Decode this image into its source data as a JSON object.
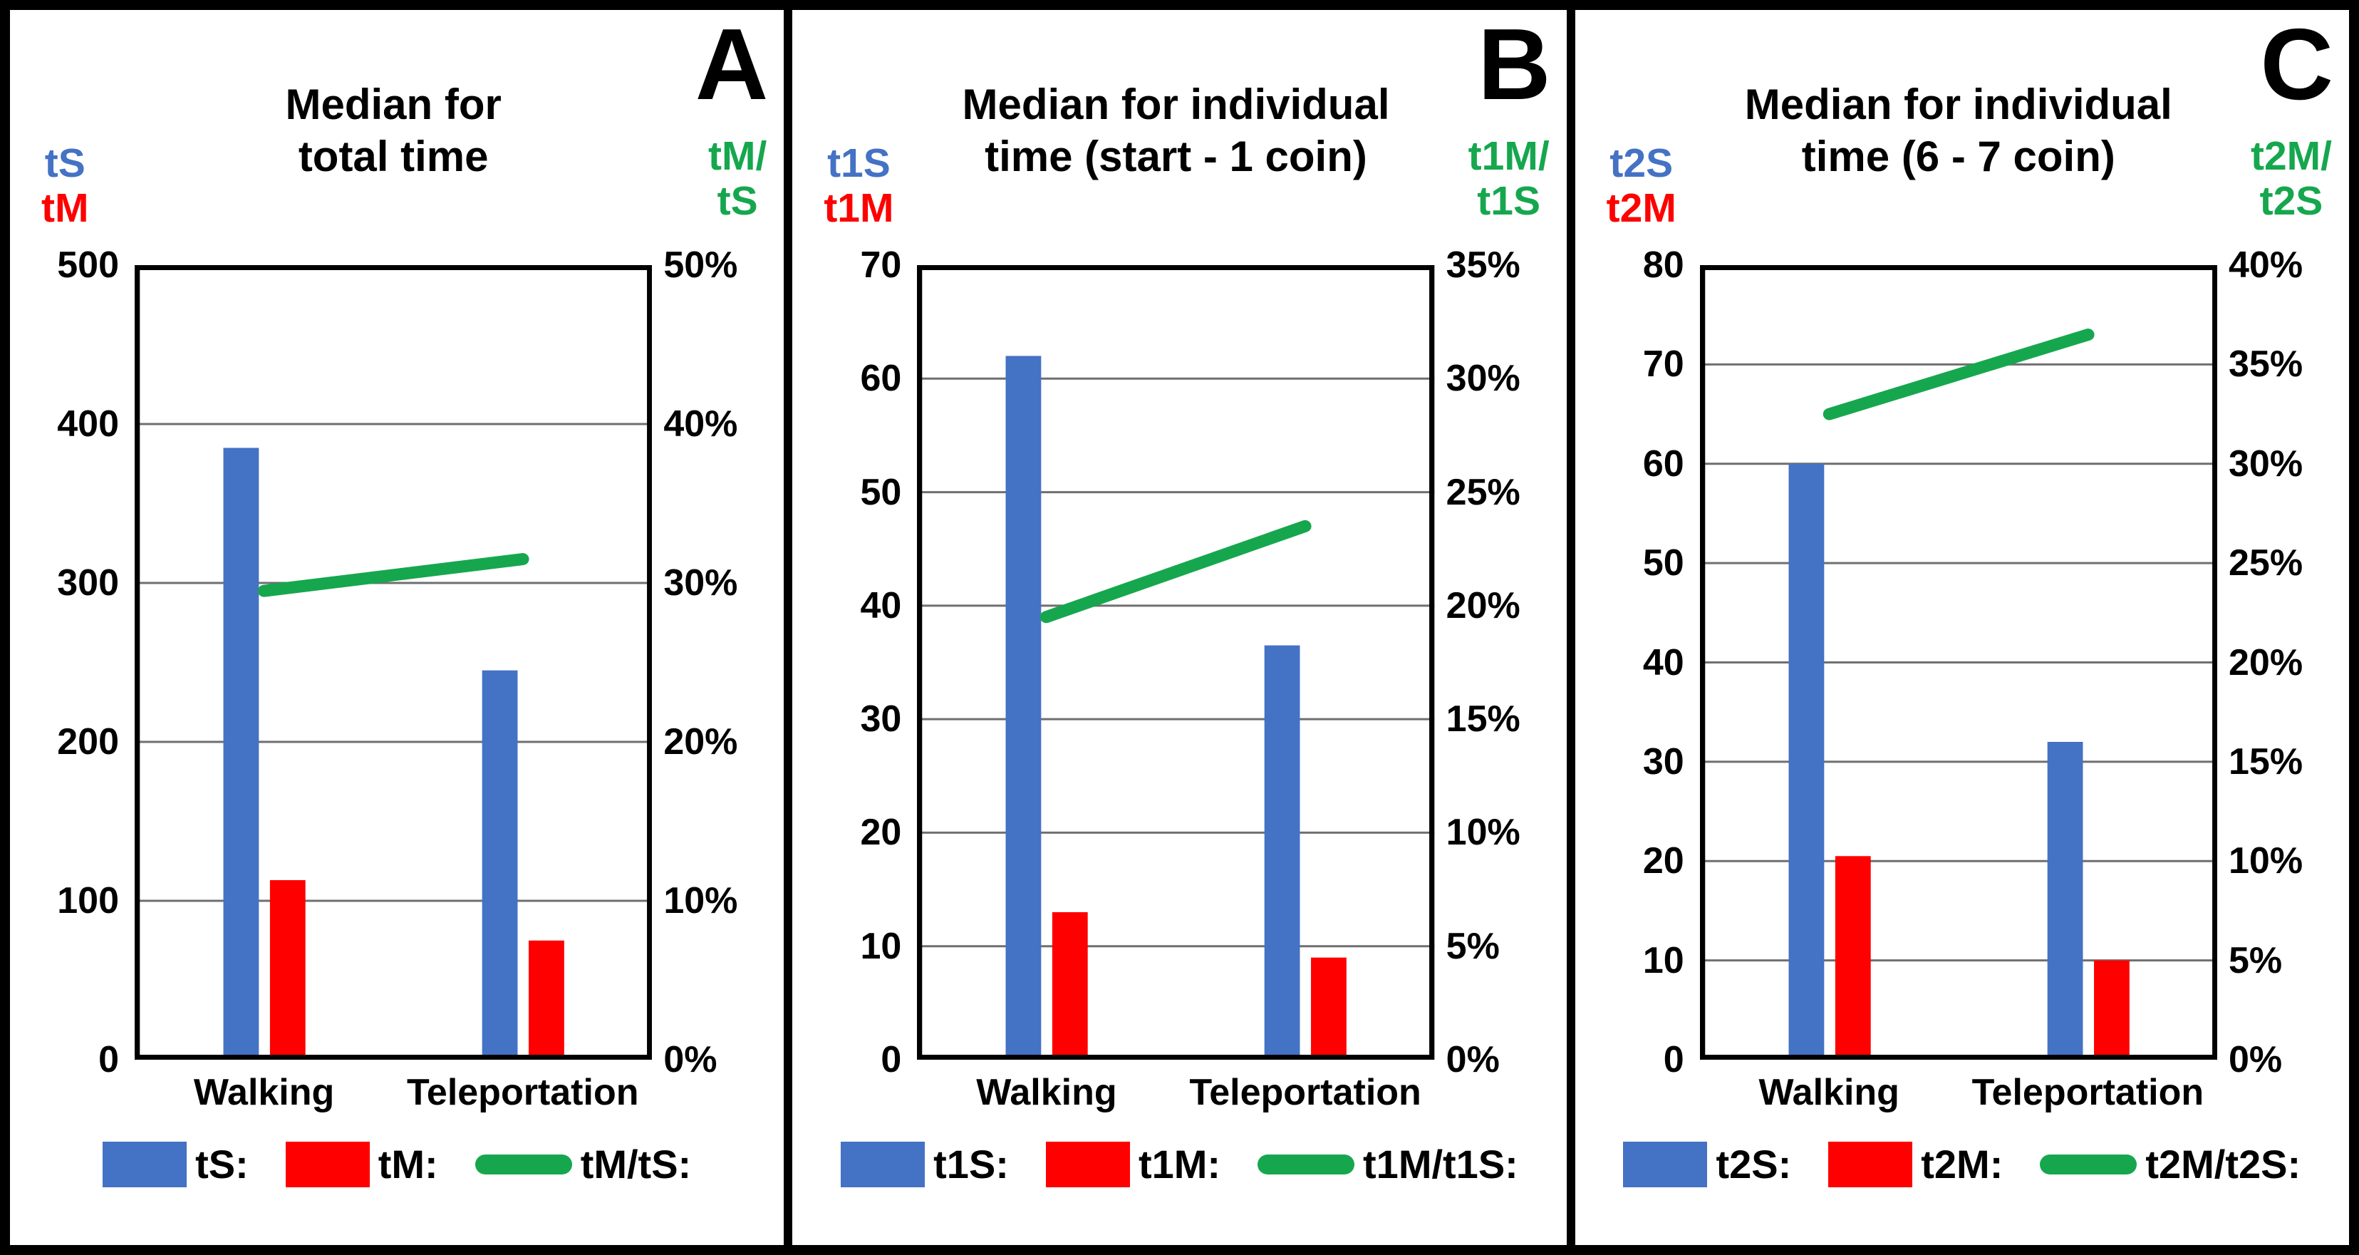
{
  "colors": {
    "blue": "#4472c4",
    "red": "#fe0000",
    "green": "#16a74e",
    "gridline": "#6f6f6f",
    "plot_border": "#000000"
  },
  "categories": [
    "Walking",
    "Teleportation"
  ],
  "panels": [
    {
      "letter": "A",
      "title_line1": "Median for",
      "title_line2": "total time",
      "left_label_line1": "tS",
      "left_label_line2": "tM",
      "right_label_line1": "tM/",
      "right_label_line2": "tS",
      "cat1": "Walking",
      "cat2": "Teleportation",
      "legend_blue": "tS:",
      "legend_red": "tM:",
      "legend_line": "tM/tS:"
    },
    {
      "letter": "B",
      "title_line1": "Median for individual",
      "title_line2": "time (start - 1 coin)",
      "left_label_line1": "t1S",
      "left_label_line2": "t1M",
      "right_label_line1": "t1M/",
      "right_label_line2": "t1S",
      "cat1": "Walking",
      "cat2": "Teleportation",
      "legend_blue": "t1S:",
      "legend_red": "t1M:",
      "legend_line": "t1M/t1S:"
    },
    {
      "letter": "C",
      "title_line1": "Median for individual",
      "title_line2": "time (6 - 7 coin)",
      "left_label_line1": "t2S",
      "left_label_line2": "t2M",
      "right_label_line1": "t2M/",
      "right_label_line2": "t2S",
      "cat1": "Walking",
      "cat2": "Teleportation",
      "legend_blue": "t2S:",
      "legend_red": "t2M:",
      "legend_line": "t2M/t2S:"
    }
  ],
  "chart_data": [
    {
      "type": "bar",
      "subtype": "bar+line-combo",
      "panel_letter": "A",
      "title": "Median for total time",
      "categories": [
        "Walking",
        "Teleportation"
      ],
      "series": [
        {
          "name": "tS:",
          "type": "bar",
          "axis": "left",
          "color": "#4472c4",
          "values": [
            385,
            245
          ]
        },
        {
          "name": "tM:",
          "type": "bar",
          "axis": "left",
          "color": "#fe0000",
          "values": [
            113,
            75
          ]
        },
        {
          "name": "tM/tS:",
          "type": "line",
          "axis": "right",
          "color": "#16a74e",
          "values_pct": [
            29.5,
            31.5
          ]
        }
      ],
      "left_axis": {
        "label": "tS tM",
        "min": 0,
        "max": 500,
        "step": 100,
        "ticks": [
          "500",
          "400",
          "300",
          "200",
          "100",
          "0"
        ]
      },
      "right_axis": {
        "label": "tM/tS",
        "min_pct": 0,
        "max_pct": 50,
        "step_pct": 10,
        "ticks": [
          "50%",
          "40%",
          "30%",
          "20%",
          "10%",
          "0%"
        ]
      },
      "grid": true,
      "legend_position": "bottom"
    },
    {
      "type": "bar",
      "subtype": "bar+line-combo",
      "panel_letter": "B",
      "title": "Median for individual time (start - 1 coin)",
      "categories": [
        "Walking",
        "Teleportation"
      ],
      "series": [
        {
          "name": "t1S:",
          "type": "bar",
          "axis": "left",
          "color": "#4472c4",
          "values": [
            62,
            36.5
          ]
        },
        {
          "name": "t1M:",
          "type": "bar",
          "axis": "left",
          "color": "#fe0000",
          "values": [
            13,
            9
          ]
        },
        {
          "name": "t1M/t1S:",
          "type": "line",
          "axis": "right",
          "color": "#16a74e",
          "values_pct": [
            19.5,
            23.5
          ]
        }
      ],
      "left_axis": {
        "label": "t1S t1M",
        "min": 0,
        "max": 70,
        "step": 10,
        "ticks": [
          "70",
          "60",
          "50",
          "40",
          "30",
          "20",
          "10",
          "0"
        ]
      },
      "right_axis": {
        "label": "t1M/t1S",
        "min_pct": 0,
        "max_pct": 35,
        "step_pct": 5,
        "ticks": [
          "35%",
          "30%",
          "25%",
          "20%",
          "15%",
          "10%",
          "5%",
          "0%"
        ]
      },
      "grid": true,
      "legend_position": "bottom"
    },
    {
      "type": "bar",
      "subtype": "bar+line-combo",
      "panel_letter": "C",
      "title": "Median for individual time (6 - 7 coin)",
      "categories": [
        "Walking",
        "Teleportation"
      ],
      "series": [
        {
          "name": "t2S:",
          "type": "bar",
          "axis": "left",
          "color": "#4472c4",
          "values": [
            60,
            32
          ]
        },
        {
          "name": "t2M:",
          "type": "bar",
          "axis": "left",
          "color": "#fe0000",
          "values": [
            20.5,
            10
          ]
        },
        {
          "name": "t2M/t2S:",
          "type": "line",
          "axis": "right",
          "color": "#16a74e",
          "values_pct": [
            32.5,
            36.5
          ]
        }
      ],
      "left_axis": {
        "label": "t2S t2M",
        "min": 0,
        "max": 80,
        "step": 10,
        "ticks": [
          "80",
          "70",
          "60",
          "50",
          "40",
          "30",
          "20",
          "10",
          "0"
        ]
      },
      "right_axis": {
        "label": "t2M/t2S",
        "min_pct": 0,
        "max_pct": 40,
        "step_pct": 5,
        "ticks": [
          "40%",
          "35%",
          "30%",
          "25%",
          "20%",
          "15%",
          "10%",
          "5%",
          "0%"
        ]
      },
      "grid": true,
      "legend_position": "bottom"
    }
  ]
}
